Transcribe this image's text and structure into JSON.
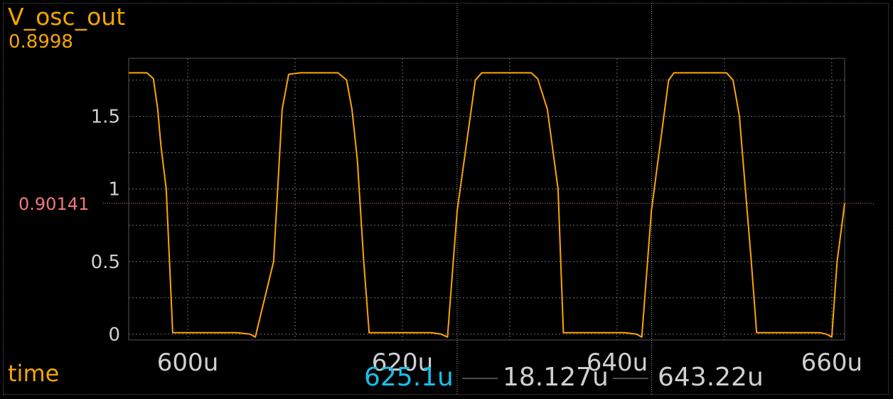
{
  "trace": {
    "name": "V_osc_out",
    "value": "0.8998"
  },
  "x_axis_name": "time",
  "hcursor": {
    "value": "0.90141"
  },
  "cursors": {
    "c1": "625.1u",
    "c2": "643.22u",
    "delta": "18.127u"
  },
  "colors": {
    "trace": "#ffa500",
    "hcursor": "#f07878",
    "cursor1": "#19c0e8",
    "grid": "#6a6a6a",
    "text": "#d0d0d0"
  },
  "chart_data": {
    "type": "line",
    "title": "V_osc_out",
    "xlabel": "time",
    "ylabel": "",
    "xlim": [
      594.5,
      661.2
    ],
    "ylim": [
      -0.04,
      1.9
    ],
    "x_ticks": [
      600,
      620,
      640,
      660
    ],
    "x_tick_labels": [
      "600u",
      "620u",
      "640u",
      "660u"
    ],
    "y_ticks": [
      0,
      0.5,
      1,
      1.5
    ],
    "y_tick_labels": [
      "0",
      "0.5",
      "1",
      "1.5"
    ],
    "hline": 0.90141,
    "vlines": [
      625.1,
      643.22
    ],
    "series": [
      {
        "x": [
          594.5,
          596.2,
          596.8,
          597.2,
          597.5,
          598.0,
          598.3,
          598.6,
          599.3,
          604.5,
          605.8,
          606.3,
          608.0,
          608.8,
          609.4,
          610.5,
          614.0,
          614.8,
          615.3,
          615.8,
          616.4,
          616.9,
          622.7,
          623.6,
          624.2,
          625.1,
          626.8,
          627.4,
          628.3,
          632.0,
          632.6,
          633.5,
          634.5,
          635.0,
          640.7,
          641.8,
          642.3,
          643.2,
          644.8,
          645.3,
          646.1,
          650.2,
          650.8,
          651.4,
          652.5,
          653.0,
          658.9,
          659.5,
          660.0,
          660.5,
          661.2
        ],
        "values": [
          1.8,
          1.8,
          1.76,
          1.55,
          1.3,
          1.0,
          0.5,
          0.01,
          0.01,
          0.01,
          0.0,
          -0.02,
          0.5,
          1.55,
          1.79,
          1.8,
          1.8,
          1.75,
          1.55,
          1.2,
          0.5,
          0.01,
          0.01,
          0.0,
          -0.02,
          0.85,
          1.75,
          1.8,
          1.8,
          1.8,
          1.76,
          1.55,
          1.0,
          0.01,
          0.01,
          0.0,
          -0.02,
          0.85,
          1.75,
          1.8,
          1.8,
          1.8,
          1.75,
          1.5,
          0.5,
          0.01,
          0.01,
          0.0,
          -0.02,
          0.5,
          0.9
        ]
      }
    ]
  }
}
